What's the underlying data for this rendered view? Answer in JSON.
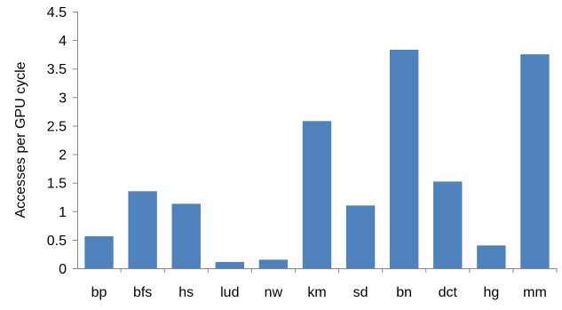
{
  "chart_data": {
    "type": "bar",
    "categories": [
      "bp",
      "bfs",
      "hs",
      "lud",
      "nw",
      "km",
      "sd",
      "bn",
      "dct",
      "hg",
      "mm"
    ],
    "values": [
      0.56,
      1.35,
      1.13,
      0.11,
      0.15,
      2.58,
      1.1,
      3.83,
      1.52,
      0.4,
      3.75
    ],
    "ylabel": "Accesses per GPU cycle",
    "xlabel": "",
    "ylim": [
      0,
      4.5
    ],
    "yticks": [
      "0",
      "0.5",
      "1",
      "1.5",
      "2",
      "2.5",
      "3",
      "3.5",
      "4",
      "4.5"
    ],
    "grid": false,
    "legend": "none",
    "bar_color": "#4f81bd"
  }
}
